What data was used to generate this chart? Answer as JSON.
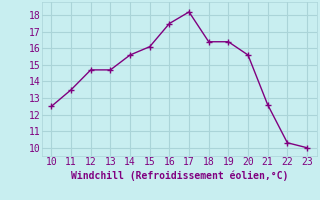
{
  "x": [
    10,
    11,
    12,
    13,
    14,
    15,
    16,
    17,
    18,
    19,
    20,
    21,
    22,
    23
  ],
  "y": [
    12.5,
    13.5,
    14.7,
    14.7,
    15.6,
    16.1,
    17.5,
    18.2,
    16.4,
    16.4,
    15.6,
    12.6,
    10.3,
    10.0
  ],
  "line_color": "#800080",
  "marker": "+",
  "marker_size": 4,
  "line_width": 1.0,
  "bg_color": "#c8eef0",
  "grid_color": "#aad4d8",
  "xlabel": "Windchill (Refroidissement éolien,°C)",
  "xlabel_color": "#800080",
  "tick_color": "#800080",
  "xlim": [
    9.5,
    23.5
  ],
  "ylim": [
    9.5,
    18.8
  ],
  "xticks": [
    10,
    11,
    12,
    13,
    14,
    15,
    16,
    17,
    18,
    19,
    20,
    21,
    22,
    23
  ],
  "yticks": [
    10,
    11,
    12,
    13,
    14,
    15,
    16,
    17,
    18
  ],
  "font_size": 7,
  "xlabel_font_size": 7,
  "font_family": "monospace"
}
